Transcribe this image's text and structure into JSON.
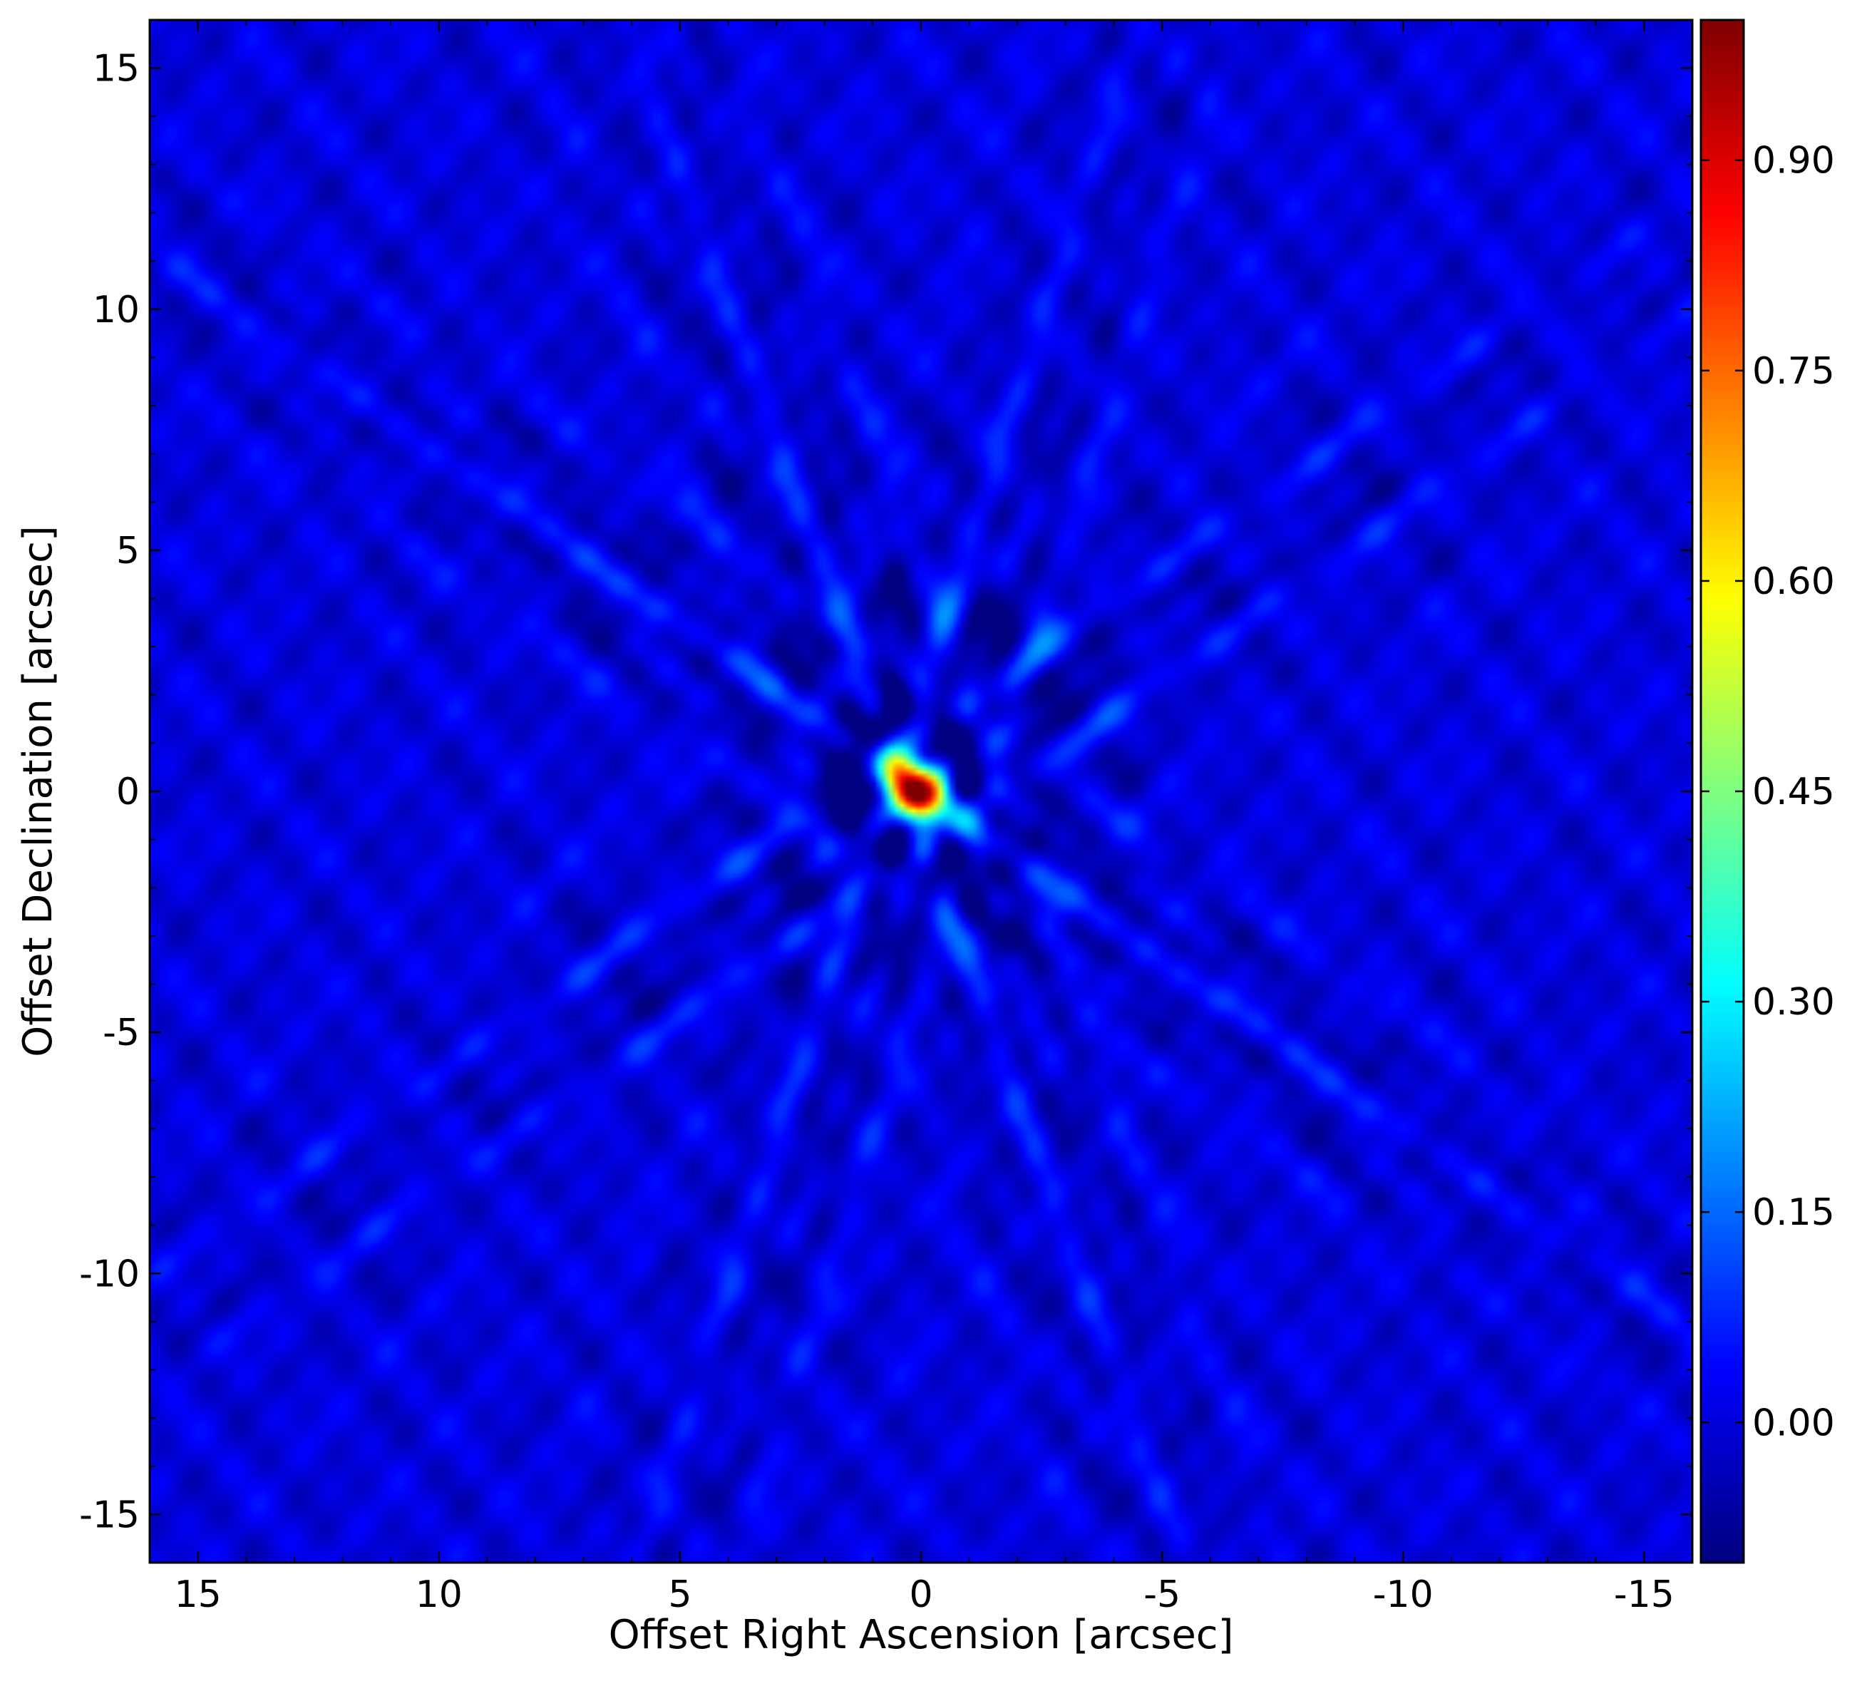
{
  "chart_data": {
    "type": "heatmap",
    "title": "",
    "xlabel": "Offset Right Ascension [arcsec]",
    "ylabel": "Offset Declination [arcsec]",
    "xlim": [
      16,
      -16
    ],
    "ylim": [
      -16,
      16
    ],
    "x_reversed": true,
    "xticks": [
      15,
      10,
      5,
      0,
      -5,
      -10,
      -15
    ],
    "xtick_labels": [
      "15",
      "10",
      "5",
      "0",
      "-5",
      "-10",
      "-15"
    ],
    "yticks": [
      15,
      10,
      5,
      0,
      -5,
      -10,
      -15
    ],
    "ytick_labels": [
      "15",
      "10",
      "5",
      "0",
      "-5",
      "-10",
      "-15"
    ],
    "colormap": "jet",
    "colorbar": {
      "range": [
        -0.1,
        1.0
      ],
      "ticks": [
        0.9,
        0.75,
        0.6,
        0.45,
        0.3,
        0.15,
        0.0
      ],
      "tick_labels": [
        "0.90",
        "0.75",
        "0.60",
        "0.45",
        "0.30",
        "0.15",
        "0.00"
      ],
      "location": "right"
    },
    "peak": {
      "x": 0,
      "y": 0,
      "value": 1.0
    },
    "sidelobe_streak_angles_deg": [
      35,
      70,
      108,
      145
    ],
    "background_level": 0.0,
    "grid": false
  },
  "colors": {
    "jet_stops": [
      "#00008f",
      "#0000ff",
      "#0080ff",
      "#00ffff",
      "#80ff80",
      "#ffff00",
      "#ff8000",
      "#ff0000",
      "#800000"
    ]
  }
}
